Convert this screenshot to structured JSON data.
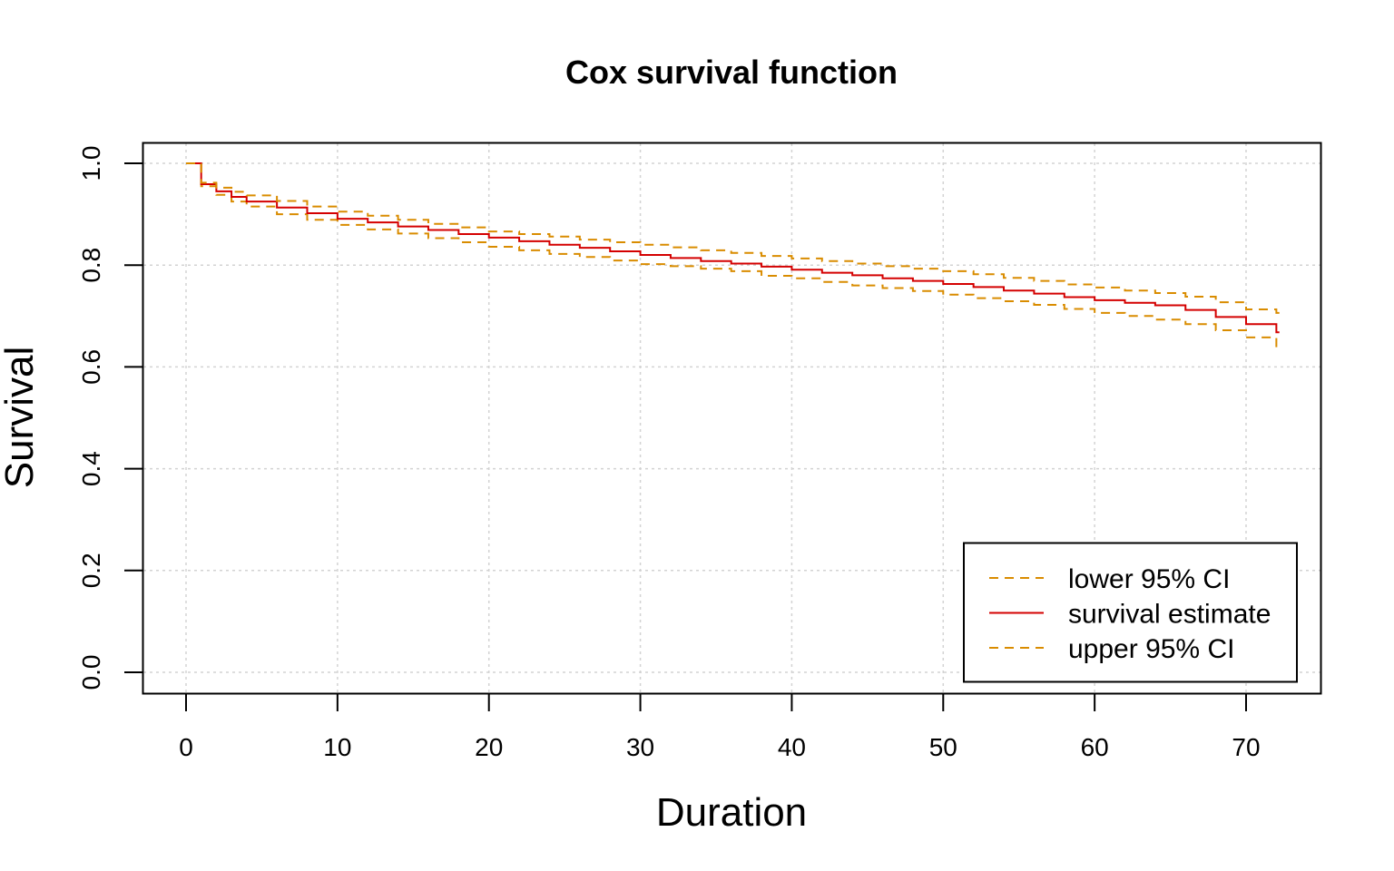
{
  "chart_data": {
    "type": "line",
    "title": "Cox survival function",
    "xlabel": "Duration",
    "ylabel": "Survival",
    "xlim": [
      0,
      72
    ],
    "ylim": [
      0,
      1
    ],
    "x_ticks": [
      "0",
      "10",
      "20",
      "30",
      "40",
      "50",
      "60",
      "70"
    ],
    "y_ticks": [
      "0.0",
      "0.2",
      "0.4",
      "0.6",
      "0.8",
      "1.0"
    ],
    "grid": true,
    "legend_position": "bottom-right",
    "step": true,
    "x": [
      0,
      1,
      2,
      3,
      4,
      6,
      8,
      10,
      12,
      14,
      16,
      18,
      20,
      22,
      24,
      26,
      28,
      30,
      32,
      34,
      36,
      38,
      40,
      42,
      44,
      46,
      48,
      50,
      52,
      54,
      56,
      58,
      60,
      62,
      64,
      66,
      68,
      70,
      72
    ],
    "series": [
      {
        "name": "lower 95% CI",
        "color": "#d98c00",
        "style": "dashed",
        "values": [
          1,
          0.955,
          0.938,
          0.925,
          0.915,
          0.9,
          0.889,
          0.879,
          0.87,
          0.862,
          0.853,
          0.845,
          0.836,
          0.829,
          0.822,
          0.816,
          0.809,
          0.802,
          0.798,
          0.793,
          0.788,
          0.779,
          0.774,
          0.767,
          0.76,
          0.755,
          0.749,
          0.742,
          0.735,
          0.729,
          0.722,
          0.714,
          0.706,
          0.7,
          0.693,
          0.684,
          0.672,
          0.658,
          0.636
        ]
      },
      {
        "name": "survival estimate",
        "color": "#d40000",
        "style": "solid",
        "values": [
          1,
          0.959,
          0.945,
          0.934,
          0.925,
          0.913,
          0.902,
          0.891,
          0.884,
          0.876,
          0.869,
          0.861,
          0.854,
          0.847,
          0.84,
          0.834,
          0.827,
          0.82,
          0.814,
          0.808,
          0.803,
          0.797,
          0.791,
          0.785,
          0.78,
          0.774,
          0.769,
          0.763,
          0.757,
          0.75,
          0.744,
          0.737,
          0.731,
          0.726,
          0.721,
          0.712,
          0.698,
          0.684,
          0.668
        ]
      },
      {
        "name": "upper 95% CI",
        "color": "#d98c00",
        "style": "dashed",
        "values": [
          1,
          0.962,
          0.952,
          0.944,
          0.937,
          0.926,
          0.915,
          0.905,
          0.897,
          0.889,
          0.881,
          0.874,
          0.866,
          0.861,
          0.856,
          0.85,
          0.845,
          0.84,
          0.835,
          0.829,
          0.824,
          0.818,
          0.813,
          0.808,
          0.803,
          0.798,
          0.793,
          0.788,
          0.782,
          0.775,
          0.769,
          0.762,
          0.756,
          0.75,
          0.745,
          0.738,
          0.727,
          0.713,
          0.706
        ]
      }
    ]
  }
}
